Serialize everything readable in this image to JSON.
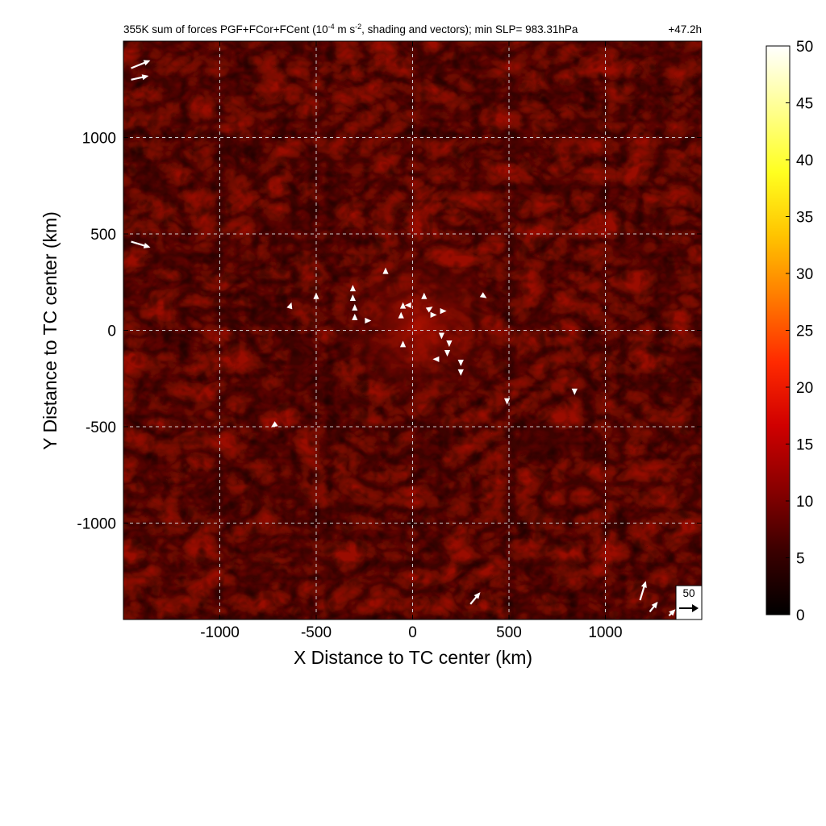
{
  "chart_data": {
    "type": "heatmap",
    "title": "355K sum of forces PGF+FCor+FCent (10",
    "title_exp1": "-4",
    "title_mid": " m s",
    "title_exp2": "-2",
    "title_end": ", shading and vectors); min SLP= 983.31hPa",
    "time_label": "+47.2h",
    "xlabel": "X Distance to TC center (km)",
    "ylabel": "Y Distance to TC center (km)",
    "xlim": [
      -1500,
      1500
    ],
    "ylim": [
      -1500,
      1500
    ],
    "xticks": [
      -1000,
      -500,
      0,
      500,
      1000
    ],
    "yticks": [
      -1000,
      -500,
      0,
      500,
      1000
    ],
    "grid": true,
    "grid_style": "dashed",
    "colorbar": {
      "min": 0,
      "max": 50,
      "ticks": [
        0,
        5,
        10,
        15,
        20,
        25,
        30,
        35,
        40,
        45,
        50
      ],
      "colormap": "hot",
      "stops": [
        "#000000",
        "#3a0000",
        "#8a0000",
        "#d00000",
        "#ff2a00",
        "#ff7a00",
        "#ffc400",
        "#ffff20",
        "#ffff90",
        "#ffffff"
      ]
    },
    "reference_vector": {
      "value": 50,
      "label": "50"
    },
    "vectors": [
      {
        "x": -1460,
        "y": 1360,
        "u": 1.0,
        "v": 0.4
      },
      {
        "x": -1460,
        "y": 1300,
        "u": 0.9,
        "v": 0.2
      },
      {
        "x": -1460,
        "y": 460,
        "u": 1.0,
        "v": -0.3
      },
      {
        "x": -640,
        "y": 110,
        "u": 0.1,
        "v": 0.3
      },
      {
        "x": -500,
        "y": 160,
        "u": 0.0,
        "v": 0.3
      },
      {
        "x": -310,
        "y": 200,
        "u": 0.0,
        "v": 0.3
      },
      {
        "x": -310,
        "y": 150,
        "u": 0.0,
        "v": 0.3
      },
      {
        "x": -300,
        "y": 100,
        "u": 0.0,
        "v": 0.3
      },
      {
        "x": -300,
        "y": 50,
        "u": 0.0,
        "v": 0.3
      },
      {
        "x": -250,
        "y": 50,
        "u": 0.3,
        "v": 0.0
      },
      {
        "x": -140,
        "y": 290,
        "u": 0.0,
        "v": 0.3
      },
      {
        "x": -50,
        "y": 110,
        "u": 0.0,
        "v": 0.3
      },
      {
        "x": -60,
        "y": 60,
        "u": 0.0,
        "v": 0.3
      },
      {
        "x": -50,
        "y": -90,
        "u": 0.0,
        "v": 0.3
      },
      {
        "x": -5,
        "y": 130,
        "u": -0.3,
        "v": 0.0
      },
      {
        "x": 60,
        "y": 160,
        "u": 0.0,
        "v": 0.3
      },
      {
        "x": 70,
        "y": 100,
        "u": 0.3,
        "v": 0.2
      },
      {
        "x": 90,
        "y": 80,
        "u": 0.3,
        "v": 0.0
      },
      {
        "x": 140,
        "y": 100,
        "u": 0.3,
        "v": 0.0
      },
      {
        "x": 150,
        "y": -10,
        "u": 0.0,
        "v": -0.3
      },
      {
        "x": 190,
        "y": -50,
        "u": 0.0,
        "v": -0.3
      },
      {
        "x": 180,
        "y": -100,
        "u": 0.0,
        "v": -0.3
      },
      {
        "x": 140,
        "y": -150,
        "u": -0.3,
        "v": 0.0
      },
      {
        "x": 250,
        "y": -150,
        "u": 0.0,
        "v": -0.3
      },
      {
        "x": 250,
        "y": -200,
        "u": 0.0,
        "v": -0.3
      },
      {
        "x": 350,
        "y": 190,
        "u": 0.3,
        "v": -0.2
      },
      {
        "x": 490,
        "y": -350,
        "u": 0.0,
        "v": -0.3
      },
      {
        "x": 840,
        "y": -300,
        "u": 0.0,
        "v": -0.3
      },
      {
        "x": -700,
        "y": -480,
        "u": -0.3,
        "v": -0.2
      },
      {
        "x": 300,
        "y": -1420,
        "u": 0.5,
        "v": 0.6
      },
      {
        "x": 1180,
        "y": -1400,
        "u": 0.3,
        "v": 1.0
      },
      {
        "x": 1230,
        "y": -1460,
        "u": 0.4,
        "v": 0.5
      },
      {
        "x": 1330,
        "y": -1480,
        "u": 0.3,
        "v": 0.3
      }
    ]
  }
}
